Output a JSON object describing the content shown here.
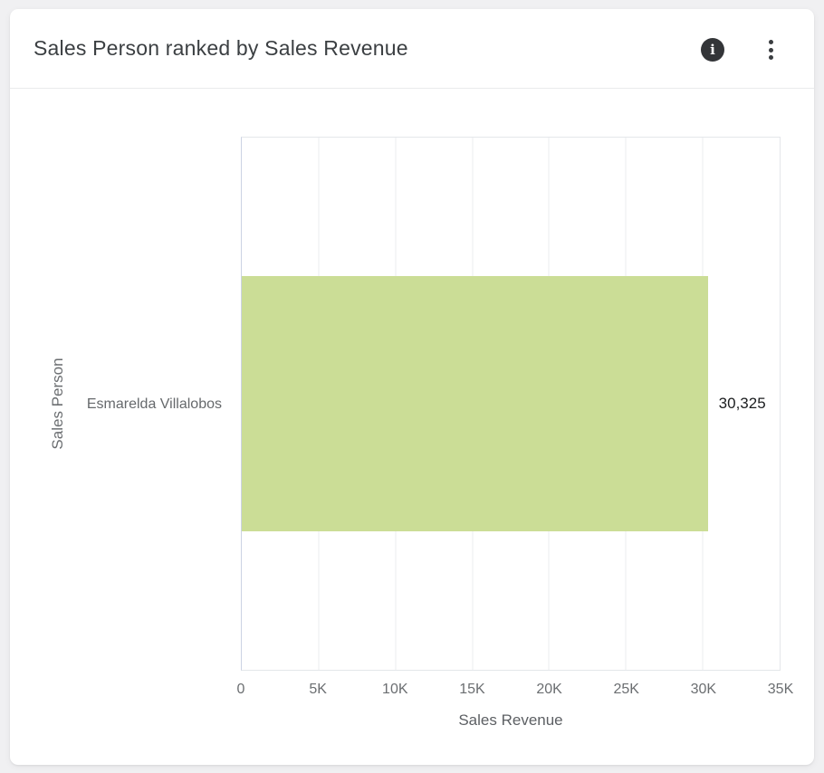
{
  "header": {
    "title": "Sales Person ranked by Sales Revenue",
    "info_glyph": "i"
  },
  "chart_data": {
    "type": "bar",
    "orientation": "horizontal",
    "title": "Sales Person ranked by Sales Revenue",
    "categories": [
      "Esmarelda Villalobos"
    ],
    "values": [
      30325
    ],
    "value_labels": [
      "30,325"
    ],
    "xlabel": "Sales Revenue",
    "ylabel": "Sales Person",
    "xlim": [
      0,
      35000
    ],
    "x_tick_values": [
      0,
      5000,
      10000,
      15000,
      20000,
      25000,
      30000,
      35000
    ],
    "x_tick_labels": [
      "0",
      "5K",
      "10K",
      "15K",
      "20K",
      "25K",
      "30K",
      "35K"
    ],
    "grid": "vertical",
    "legend": false,
    "bar_color": "#cbdd96",
    "colors": {
      "grid_line": "#ebedef",
      "axis_line": "#ccd3e4",
      "tick_text": "#6b6e71",
      "value_text": "#1b1d1f",
      "title_text": "#3b3f42"
    }
  }
}
